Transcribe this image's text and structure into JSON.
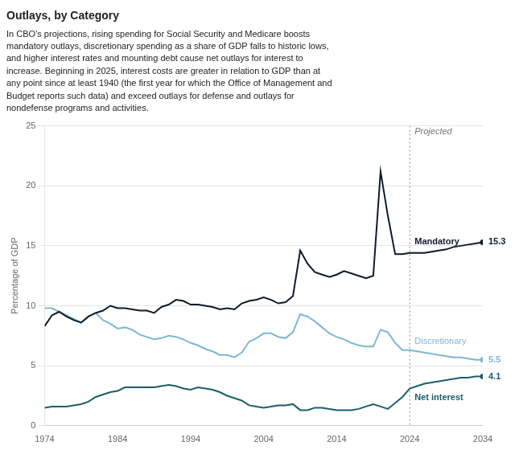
{
  "chart_data": {
    "type": "line",
    "title": "Outlays, by Category",
    "subtitle": "In CBO’s projections, rising spending for Social Security and Medicare boosts\nmandatory outlays, discretionary spending as a share of GDP falls to historic lows,\nand higher interest rates and mounting debt cause net outlays for interest to\nincrease. Beginning in 2025, interest costs are greater in relation to GDP than at\nany point since at least 1940 (the first year for which the Office of Management and\nBudget reports such data) and exceed outlays for defense and outlays for\nnondefense programs and activities.",
    "y_label": "Percentage of GDP",
    "x": [
      1974,
      1975,
      1976,
      1977,
      1978,
      1979,
      1980,
      1981,
      1982,
      1983,
      1984,
      1985,
      1986,
      1987,
      1988,
      1989,
      1990,
      1991,
      1992,
      1993,
      1994,
      1995,
      1996,
      1997,
      1998,
      1999,
      2000,
      2001,
      2002,
      2003,
      2004,
      2005,
      2006,
      2007,
      2008,
      2009,
      2010,
      2011,
      2012,
      2013,
      2014,
      2015,
      2016,
      2017,
      2018,
      2019,
      2020,
      2021,
      2022,
      2023,
      2024,
      2025,
      2026,
      2027,
      2028,
      2029,
      2030,
      2031,
      2032,
      2033,
      2034
    ],
    "series": [
      {
        "name": "Mandatory",
        "color": "#0d1b2a",
        "values": [
          8.3,
          9.2,
          9.5,
          9.1,
          8.8,
          8.6,
          9.1,
          9.4,
          9.6,
          10.0,
          9.8,
          9.8,
          9.7,
          9.6,
          9.6,
          9.4,
          9.9,
          10.1,
          10.5,
          10.4,
          10.1,
          10.1,
          10.0,
          9.9,
          9.7,
          9.8,
          9.7,
          10.2,
          10.4,
          10.5,
          10.7,
          10.5,
          10.2,
          10.3,
          10.8,
          14.6,
          13.5,
          12.8,
          12.6,
          12.4,
          12.6,
          12.9,
          12.7,
          12.5,
          12.3,
          12.5,
          21.2,
          17.5,
          14.3,
          14.3,
          14.4,
          14.4,
          14.4,
          14.5,
          14.6,
          14.7,
          14.9,
          15.0,
          15.1,
          15.2,
          15.3
        ]
      },
      {
        "name": "Discretionary",
        "color": "#7db8d1",
        "values": [
          9.8,
          9.8,
          9.5,
          9.2,
          8.9,
          8.6,
          9.1,
          9.4,
          8.8,
          8.5,
          8.1,
          8.2,
          8.0,
          7.6,
          7.4,
          7.2,
          7.3,
          7.5,
          7.4,
          7.2,
          6.9,
          6.7,
          6.4,
          6.2,
          5.9,
          5.9,
          5.7,
          6.1,
          7.0,
          7.3,
          7.7,
          7.7,
          7.4,
          7.3,
          7.8,
          9.3,
          9.1,
          8.7,
          8.2,
          7.7,
          7.4,
          7.2,
          6.9,
          6.7,
          6.6,
          6.6,
          8.0,
          7.8,
          6.9,
          6.3,
          6.3,
          6.2,
          6.1,
          6.0,
          5.9,
          5.8,
          5.7,
          5.7,
          5.6,
          5.5,
          5.5
        ]
      },
      {
        "name": "Net interest",
        "color": "#1a5f6a",
        "values": [
          1.5,
          1.6,
          1.6,
          1.6,
          1.7,
          1.8,
          2.0,
          2.4,
          2.6,
          2.8,
          2.9,
          3.2,
          3.2,
          3.2,
          3.2,
          3.2,
          3.3,
          3.4,
          3.3,
          3.1,
          3.0,
          3.2,
          3.1,
          3.0,
          2.8,
          2.5,
          2.3,
          2.1,
          1.7,
          1.6,
          1.5,
          1.6,
          1.7,
          1.7,
          1.8,
          1.3,
          1.3,
          1.5,
          1.5,
          1.4,
          1.3,
          1.3,
          1.3,
          1.4,
          1.6,
          1.8,
          1.6,
          1.4,
          1.9,
          2.4,
          3.1,
          3.3,
          3.5,
          3.6,
          3.7,
          3.8,
          3.9,
          4.0,
          4.0,
          4.1,
          4.1
        ]
      }
    ],
    "xlim": [
      1974,
      2034
    ],
    "xticks": [
      1974,
      1984,
      1994,
      2004,
      2014,
      2024,
      2034
    ],
    "ylim": [
      0,
      25
    ],
    "yticks": [
      0,
      5,
      10,
      15,
      20,
      25
    ],
    "grid": "y",
    "annotations": [
      {
        "text": "Projected",
        "x": 2024
      },
      {
        "text": "15.3",
        "x": 2034,
        "y": 15.3
      },
      {
        "text": "5.5",
        "x": 2034,
        "y": 5.5
      },
      {
        "text": "4.1",
        "x": 2034,
        "y": 4.1
      }
    ]
  }
}
